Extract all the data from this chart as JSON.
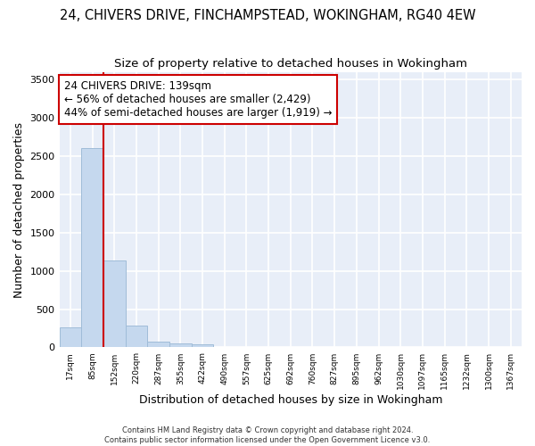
{
  "title": "24, CHIVERS DRIVE, FINCHAMPSTEAD, WOKINGHAM, RG40 4EW",
  "subtitle": "Size of property relative to detached houses in Wokingham",
  "xlabel": "Distribution of detached houses by size in Wokingham",
  "ylabel": "Number of detached properties",
  "categories": [
    "17sqm",
    "85sqm",
    "152sqm",
    "220sqm",
    "287sqm",
    "355sqm",
    "422sqm",
    "490sqm",
    "557sqm",
    "625sqm",
    "692sqm",
    "760sqm",
    "827sqm",
    "895sqm",
    "962sqm",
    "1030sqm",
    "1097sqm",
    "1165sqm",
    "1232sqm",
    "1300sqm",
    "1367sqm"
  ],
  "values": [
    260,
    2600,
    1130,
    280,
    80,
    55,
    35,
    5,
    0,
    0,
    0,
    0,
    0,
    0,
    0,
    0,
    0,
    0,
    0,
    0,
    0
  ],
  "bar_color": "#c5d8ee",
  "bar_edge_color": "#a0bcd8",
  "annotation_text": "24 CHIVERS DRIVE: 139sqm\n← 56% of detached houses are smaller (2,429)\n44% of semi-detached houses are larger (1,919) →",
  "annotation_box_color": "#cc0000",
  "vline_color": "#cc0000",
  "vline_x_index": 2,
  "ylim": [
    0,
    3600
  ],
  "yticks": [
    0,
    500,
    1000,
    1500,
    2000,
    2500,
    3000,
    3500
  ],
  "bg_color": "#e8eef8",
  "grid_color": "#ffffff",
  "footer_text": "Contains HM Land Registry data © Crown copyright and database right 2024.\nContains public sector information licensed under the Open Government Licence v3.0.",
  "title_fontsize": 10.5,
  "subtitle_fontsize": 9.5,
  "xlabel_fontsize": 9,
  "ylabel_fontsize": 9,
  "title_fontweight": "normal",
  "annotation_fontsize": 8.5
}
